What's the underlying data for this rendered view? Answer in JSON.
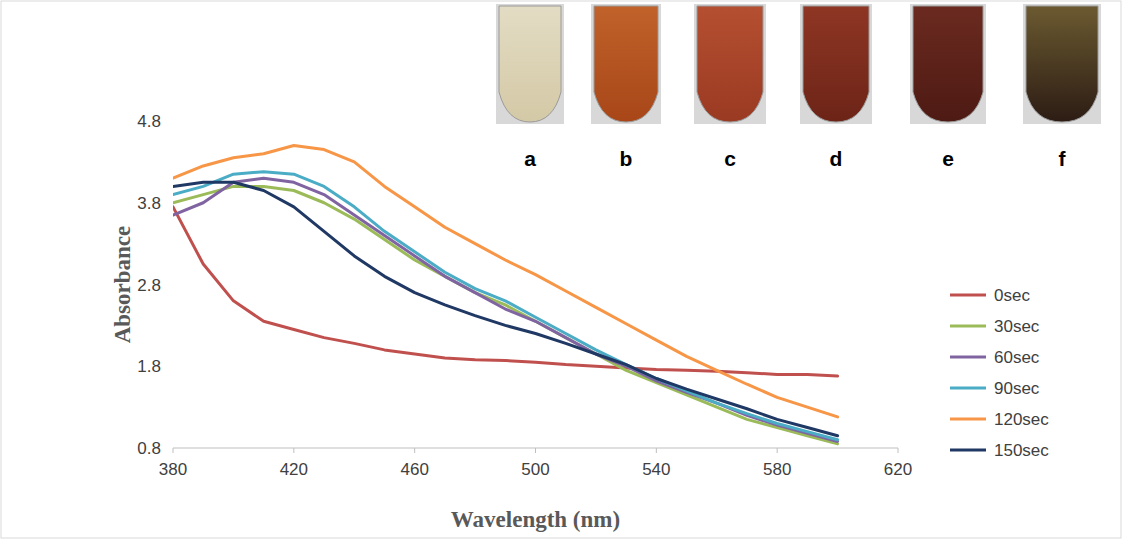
{
  "chart_data": {
    "type": "line",
    "x_label": "Wavelength (nm)",
    "y_label": "Absorbance",
    "x": [
      380,
      390,
      400,
      410,
      420,
      430,
      440,
      450,
      460,
      470,
      480,
      490,
      500,
      510,
      520,
      530,
      540,
      550,
      560,
      570,
      580,
      590,
      600
    ],
    "series": [
      {
        "name": "0sec",
        "color": "#c0504d",
        "values": [
          3.75,
          3.05,
          2.6,
          2.35,
          2.25,
          2.15,
          2.08,
          2.0,
          1.95,
          1.9,
          1.88,
          1.87,
          1.85,
          1.82,
          1.8,
          1.78,
          1.76,
          1.75,
          1.74,
          1.72,
          1.7,
          1.7,
          1.68
        ]
      },
      {
        "name": "30sec",
        "color": "#9bbb59",
        "values": [
          3.8,
          3.9,
          4.0,
          4.0,
          3.95,
          3.8,
          3.6,
          3.35,
          3.1,
          2.9,
          2.7,
          2.55,
          2.35,
          2.15,
          1.95,
          1.75,
          1.6,
          1.45,
          1.3,
          1.15,
          1.05,
          0.95,
          0.85
        ]
      },
      {
        "name": "60sec",
        "color": "#8064a2",
        "values": [
          3.65,
          3.8,
          4.05,
          4.1,
          4.05,
          3.9,
          3.65,
          3.4,
          3.15,
          2.9,
          2.7,
          2.5,
          2.35,
          2.15,
          1.95,
          1.8,
          1.62,
          1.48,
          1.35,
          1.2,
          1.08,
          0.98,
          0.88
        ]
      },
      {
        "name": "90sec",
        "color": "#4bacc6",
        "values": [
          3.9,
          4.0,
          4.15,
          4.18,
          4.15,
          4.0,
          3.75,
          3.45,
          3.2,
          2.95,
          2.75,
          2.6,
          2.4,
          2.2,
          2.0,
          1.82,
          1.65,
          1.5,
          1.35,
          1.22,
          1.1,
          1.0,
          0.9
        ]
      },
      {
        "name": "120sec",
        "color": "#f79646",
        "values": [
          4.1,
          4.25,
          4.35,
          4.4,
          4.5,
          4.45,
          4.3,
          4.0,
          3.75,
          3.5,
          3.3,
          3.1,
          2.92,
          2.72,
          2.52,
          2.32,
          2.12,
          1.92,
          1.75,
          1.58,
          1.42,
          1.3,
          1.18
        ]
      },
      {
        "name": "150sec",
        "color": "#1f3864",
        "values": [
          4.0,
          4.05,
          4.05,
          3.95,
          3.75,
          3.45,
          3.15,
          2.9,
          2.7,
          2.55,
          2.42,
          2.3,
          2.2,
          2.08,
          1.95,
          1.82,
          1.65,
          1.52,
          1.4,
          1.28,
          1.15,
          1.05,
          0.95
        ]
      }
    ],
    "xlim": [
      380,
      620
    ],
    "xticks": [
      380,
      420,
      460,
      500,
      540,
      580,
      620
    ],
    "ylim": [
      0.8,
      4.8
    ],
    "yticks": [
      0.8,
      1.8,
      2.8,
      3.8,
      4.8
    ],
    "grid": false,
    "legend": "right",
    "annotations": [
      "a",
      "b",
      "c",
      "d",
      "e",
      "f"
    ]
  }
}
